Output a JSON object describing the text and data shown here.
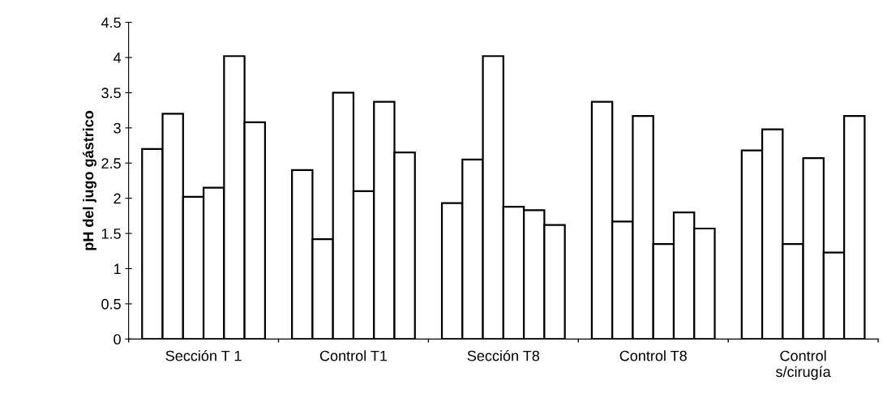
{
  "chart_data": {
    "type": "bar",
    "ylabel": "pH del jugo gástrico",
    "categories": [
      "Sección T 1",
      "Control T1",
      "Sección T8",
      "Control T8",
      "Control\ns/cirugía"
    ],
    "series": [
      {
        "color": "#ffffff",
        "values": [
          2.7,
          2.4,
          1.93,
          3.37,
          2.68
        ]
      },
      {
        "color": "#ffffff",
        "values": [
          3.2,
          1.42,
          2.55,
          1.67,
          2.98
        ]
      },
      {
        "color": "#ffffff",
        "values": [
          2.02,
          3.5,
          4.02,
          3.17,
          1.35
        ]
      },
      {
        "color": "#ffffff",
        "values": [
          2.15,
          2.1,
          1.88,
          1.35,
          2.57
        ]
      },
      {
        "color": "#ffffff",
        "values": [
          4.02,
          3.37,
          1.83,
          1.8,
          1.23
        ]
      },
      {
        "color": "#ffffff",
        "values": [
          3.08,
          2.65,
          1.62,
          1.57,
          3.17
        ]
      }
    ],
    "ylim": [
      0,
      4.5
    ],
    "yticks": [
      0,
      0.5,
      1,
      1.5,
      2,
      2.5,
      3,
      3.5,
      4,
      4.5
    ],
    "grid": false,
    "legend": false
  }
}
